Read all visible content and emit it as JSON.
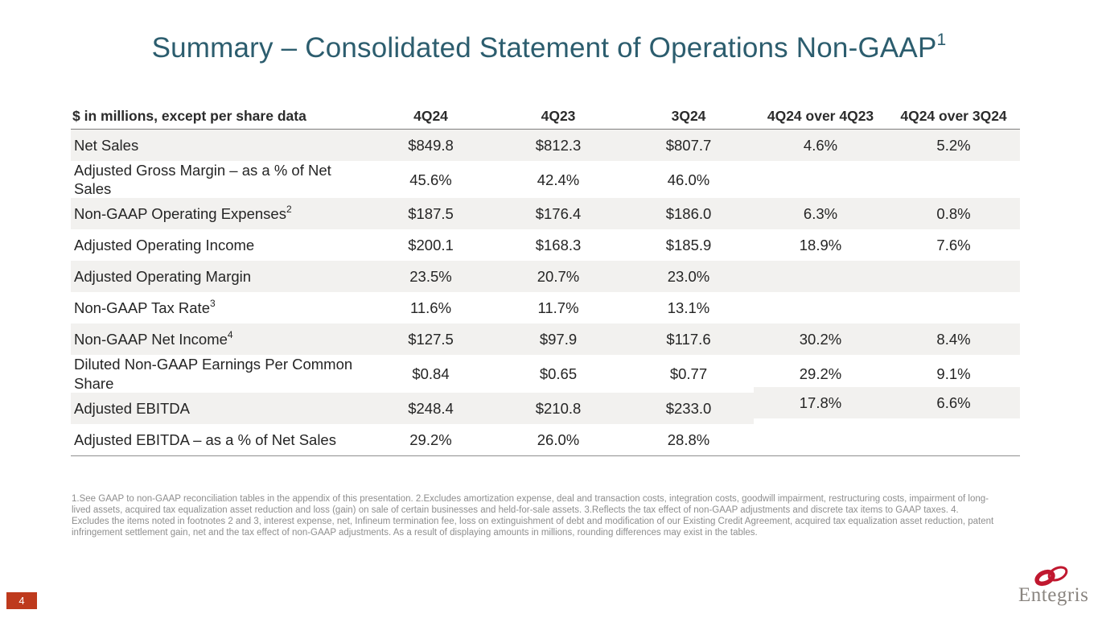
{
  "slide": {
    "title": "Summary – Consolidated Statement of Operations Non-GAAP",
    "title_superscript": "1",
    "page_number": "4",
    "logo_text": "Entegris",
    "footnotes": "1.See GAAP to non-GAAP reconciliation tables in the appendix of this presentation. 2.Excludes amortization expense, deal and transaction costs, integration costs, goodwill impairment, restructuring costs, impairment of long-lived assets, acquired tax equalization asset reduction and loss (gain) on sale of certain businesses and held-for-sale assets. 3.Reflects the tax effect of non-GAAP adjustments and discrete tax items to GAAP taxes. 4. Excludes the items noted in footnotes 2 and 3, interest expense, net, Infineum termination fee, loss on extinguishment of debt and modification of our Existing Credit Agreement, acquired tax equalization asset reduction, patent infringement settlement gain, net and the tax effect of non-GAAP adjustments. As a result of displaying amounts in millions, rounding differences may exist in the tables."
  },
  "colors": {
    "title": "#2C5D6E",
    "row_stripe": "#F2F1EF",
    "page_box_red": "#BE3A1D",
    "logo_red": "#C0182F",
    "logo_gray": "#8A8580",
    "footnote_gray": "#8e8e8e"
  },
  "table": {
    "header": [
      "$ in millions, except per share data",
      "4Q24",
      "4Q23",
      "3Q24",
      "4Q24 over 4Q23",
      "4Q24 over 3Q24"
    ],
    "rows": [
      {
        "label": "Net Sales",
        "values": [
          "$849.8",
          "$812.3",
          "$807.7",
          "4.6%",
          "5.2%"
        ]
      },
      {
        "label": "Adjusted Gross Margin – as a % of Net Sales",
        "values": [
          "45.6%",
          "42.4%",
          "46.0%",
          "",
          ""
        ]
      },
      {
        "label": "Non-GAAP Operating Expenses",
        "sup": "2",
        "values": [
          "$187.5",
          "$176.4",
          "$186.0",
          "6.3%",
          "0.8%"
        ]
      },
      {
        "label": "Adjusted Operating Income",
        "values": [
          "$200.1",
          "$168.3",
          "$185.9",
          "18.9%",
          "7.6%"
        ]
      },
      {
        "label": "Adjusted Operating Margin",
        "values": [
          "23.5%",
          "20.7%",
          "23.0%",
          "",
          ""
        ]
      },
      {
        "label": "Non-GAAP Tax Rate",
        "sup": "3",
        "values": [
          "11.6%",
          "11.7%",
          "13.1%",
          "",
          ""
        ]
      },
      {
        "label": "Non-GAAP Net Income",
        "sup": "4",
        "values": [
          "$127.5",
          "$97.9",
          "$117.6",
          "30.2%",
          "8.4%"
        ]
      },
      {
        "label": "Diluted Non-GAAP Earnings Per Common Share",
        "values": [
          "$0.84",
          "$0.65",
          "$0.77",
          "29.2%",
          "9.1%"
        ]
      },
      {
        "label": "Adjusted EBITDA",
        "values": [
          "$248.4",
          "$210.8",
          "$233.0",
          "17.8%",
          "6.6%"
        ]
      },
      {
        "label": "Adjusted EBITDA – as a % of Net Sales",
        "values": [
          "29.2%",
          "26.0%",
          "28.8%",
          "",
          ""
        ]
      }
    ]
  }
}
